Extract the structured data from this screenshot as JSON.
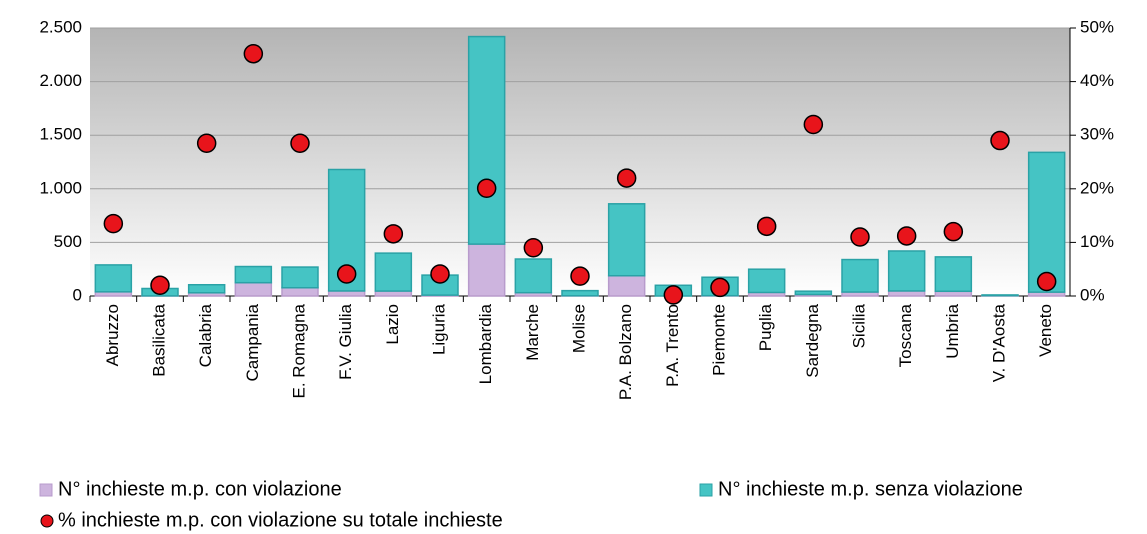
{
  "chart_data": {
    "type": "bar",
    "stacked": true,
    "categories": [
      "Abruzzo",
      "Basilicata",
      "Calabria",
      "Campania",
      "E. Romagna",
      "F.V. Giulia",
      "Lazio",
      "Liguria",
      "Lombardia",
      "Marche",
      "Molise",
      "P.A. Bolzano",
      "P.A. Trento",
      "Piemonte",
      "Puglia",
      "Sardegna",
      "Sicilia",
      "Toscana",
      "Umbria",
      "V. D'Aosta",
      "Veneto"
    ],
    "series": [
      {
        "name": "N° inchieste m.p. con violazione",
        "color": "#cdb4de",
        "values": [
          39,
          1,
          30,
          124,
          77,
          47,
          46,
          8,
          484,
          31,
          2,
          189,
          0,
          3,
          33,
          14,
          37,
          47,
          44,
          3,
          36
        ]
      },
      {
        "name": "N° inchieste m.p. senza violazione",
        "color": "#45c4c4",
        "values": [
          251,
          69,
          75,
          151,
          193,
          1133,
          354,
          187,
          1936,
          314,
          48,
          671,
          100,
          172,
          217,
          31,
          303,
          373,
          321,
          7,
          1304
        ]
      },
      {
        "name": "% inchieste m.p. con violazione su totale inchieste",
        "type": "scatter",
        "axis": "y2",
        "color": "#e8141b",
        "values": [
          13.5,
          2,
          28.5,
          45.2,
          28.5,
          4.1,
          11.6,
          4.1,
          20.1,
          9,
          3.7,
          22,
          0.2,
          1.6,
          13,
          32,
          11,
          11.2,
          12,
          29,
          2.7
        ]
      }
    ],
    "ylim": [
      0,
      2500
    ],
    "yticks": [
      0,
      500,
      {
        "value": 1000,
        "label": "1.000"
      },
      {
        "value": 1500,
        "label": "1.500"
      },
      {
        "value": 2000,
        "label": "2.000"
      },
      {
        "value": 2500,
        "label": "2.500"
      }
    ],
    "y2lim": [
      0,
      50
    ],
    "y2ticks": [
      {
        "value": 0,
        "label": "0%"
      },
      {
        "value": 10,
        "label": "10%"
      },
      {
        "value": 20,
        "label": "20%"
      },
      {
        "value": 30,
        "label": "30%"
      },
      {
        "value": 40,
        "label": "40%"
      },
      {
        "value": 50,
        "label": "50%"
      }
    ],
    "grid": true,
    "legend": "bottom"
  }
}
